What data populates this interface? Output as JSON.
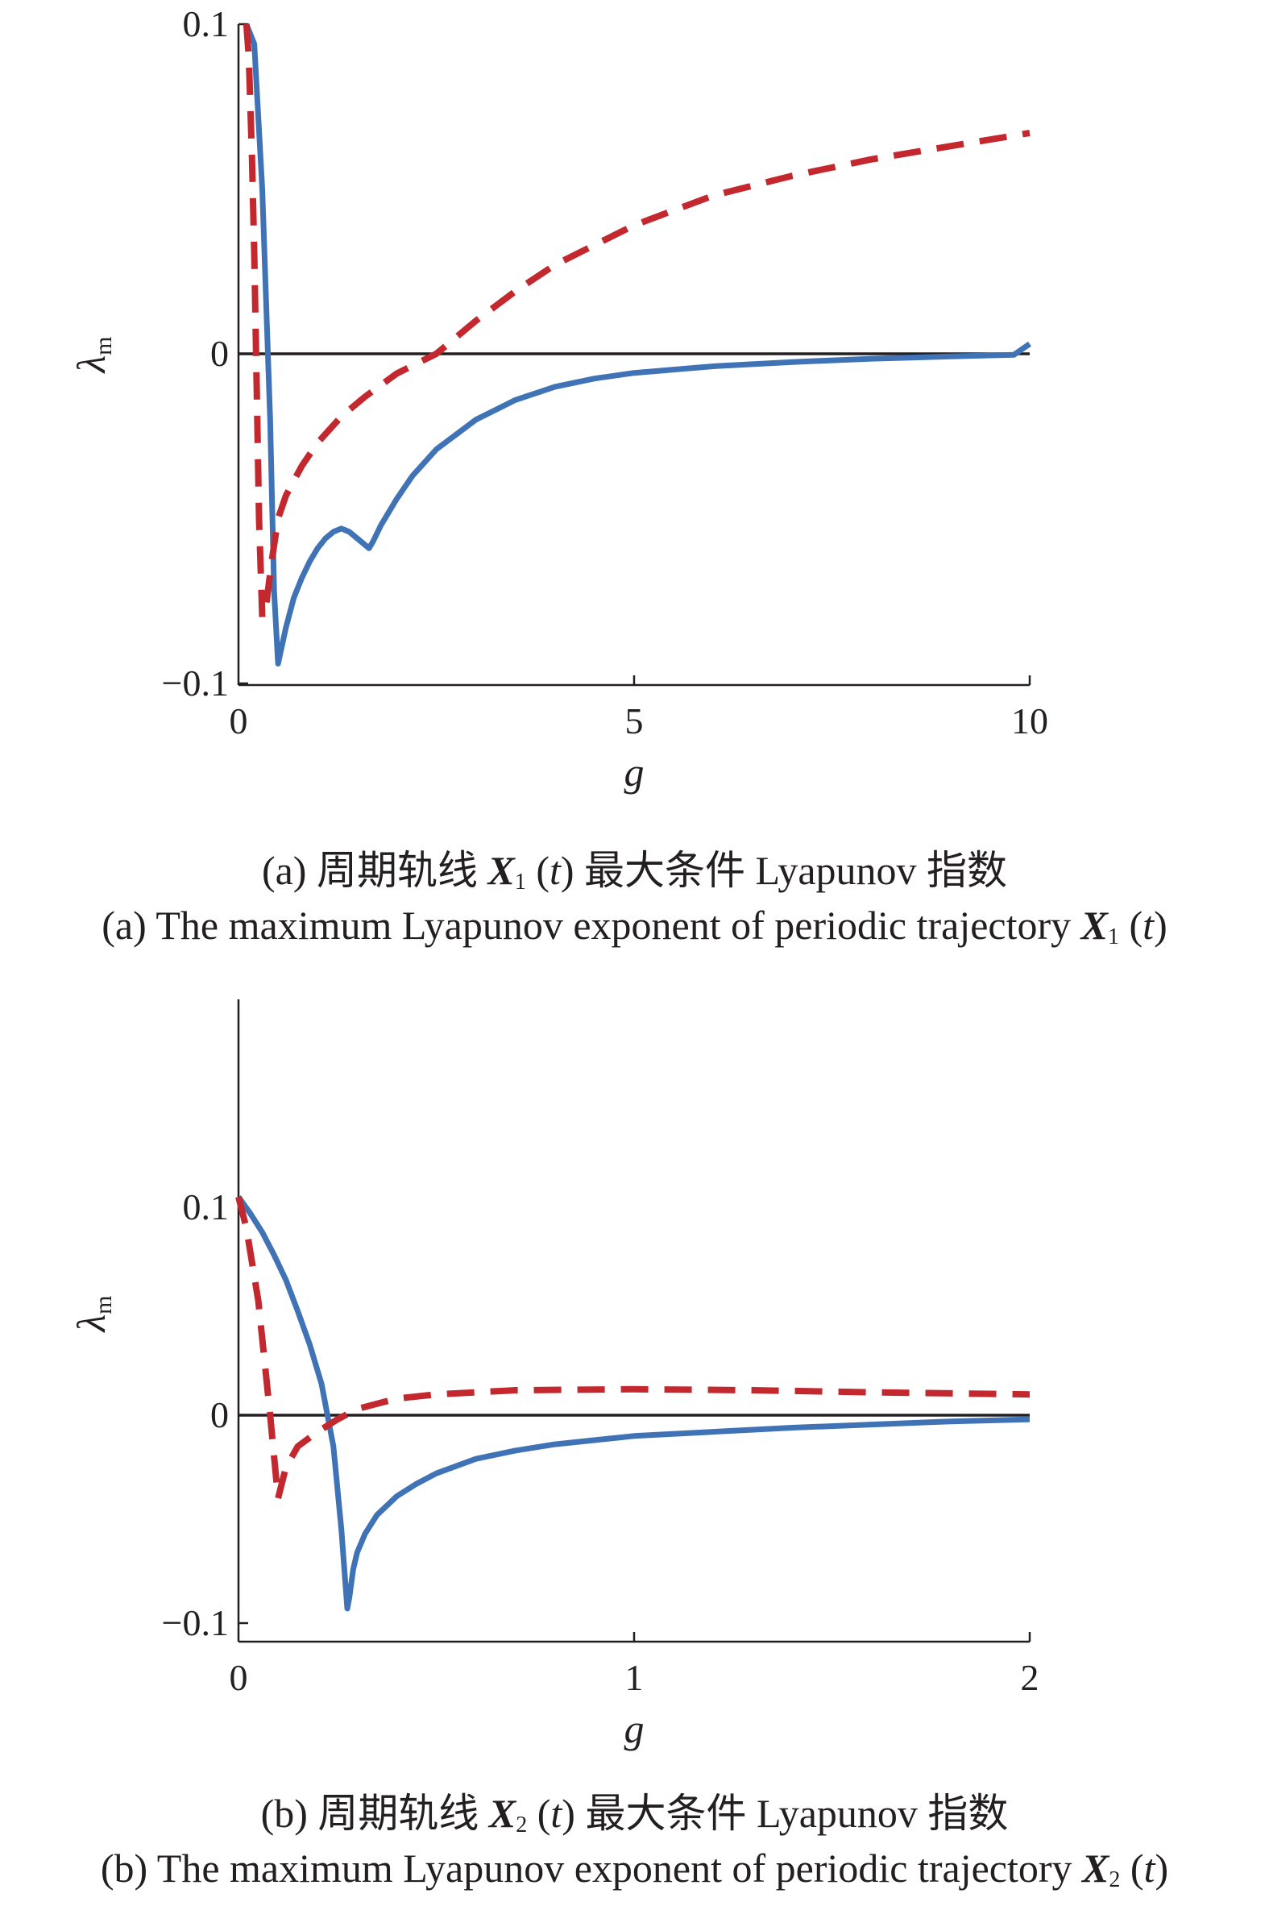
{
  "chart_data": [
    {
      "type": "line",
      "xlabel": "g",
      "ylabel": "λ",
      "ylabel_subscript": "m",
      "xlim": [
        0,
        10
      ],
      "ylim": [
        -0.1,
        0.1
      ],
      "xticks": [
        "0",
        "5",
        "10"
      ],
      "yticks": [
        "0.1",
        "0",
        "−0.1"
      ],
      "xtick_values": [
        0,
        5,
        10
      ],
      "ytick_values": [
        0.1,
        0,
        -0.1
      ],
      "reference_line_y": 0,
      "colors": {
        "solid": "#3f73b5",
        "dashed": "#c3282e",
        "zero": "#231f20",
        "axis": "#231f20"
      },
      "series": [
        {
          "style": "solid",
          "x": [
            0.1,
            0.2,
            0.3,
            0.4,
            0.45,
            0.5,
            0.6,
            0.7,
            0.8,
            0.9,
            1.0,
            1.1,
            1.2,
            1.3,
            1.4,
            1.5,
            1.6,
            1.65,
            1.7,
            1.8,
            2.0,
            2.2,
            2.5,
            3.0,
            3.5,
            4.0,
            4.5,
            5.0,
            6.0,
            7.0,
            8.0,
            9.0,
            9.8,
            10.0
          ],
          "y": [
            0.1,
            0.094,
            0.05,
            -0.02,
            -0.072,
            -0.094,
            -0.083,
            -0.074,
            -0.068,
            -0.063,
            -0.059,
            -0.056,
            -0.054,
            -0.053,
            -0.054,
            -0.056,
            -0.058,
            -0.059,
            -0.057,
            -0.052,
            -0.044,
            -0.037,
            -0.029,
            -0.02,
            -0.014,
            -0.01,
            -0.0075,
            -0.0058,
            -0.0038,
            -0.0025,
            -0.0015,
            -0.0008,
            -0.0003,
            0.003
          ]
        },
        {
          "style": "dashed",
          "x": [
            0.1,
            0.13,
            0.17,
            0.2,
            0.23,
            0.26,
            0.3,
            0.35,
            0.42,
            0.5,
            0.6,
            0.8,
            1.0,
            1.3,
            1.6,
            2.0,
            2.5,
            3.0,
            3.5,
            4.0,
            5.0,
            6.0,
            7.0,
            8.0,
            9.0,
            10.0
          ],
          "y": [
            0.1,
            0.09,
            0.06,
            0.03,
            -0.01,
            -0.05,
            -0.08,
            -0.076,
            -0.063,
            -0.05,
            -0.043,
            -0.034,
            -0.027,
            -0.019,
            -0.013,
            -0.006,
            0.0,
            0.01,
            0.019,
            0.027,
            0.039,
            0.048,
            0.054,
            0.059,
            0.063,
            0.067
          ]
        }
      ]
    },
    {
      "type": "line",
      "xlabel": "g",
      "ylabel": "λ",
      "ylabel_subscript": "m",
      "xlim": [
        0,
        2
      ],
      "ylim": [
        -0.1,
        0.1
      ],
      "xticks": [
        "0",
        "1",
        "2"
      ],
      "yticks": [
        "0.1",
        "0",
        "−0.1"
      ],
      "xtick_values": [
        0,
        1,
        2
      ],
      "ytick_values": [
        0.1,
        0,
        -0.1
      ],
      "reference_line_y": 0,
      "colors": {
        "solid": "#3f73b5",
        "dashed": "#c3282e",
        "zero": "#231f20",
        "axis": "#231f20"
      },
      "series": [
        {
          "style": "solid",
          "x": [
            0.0,
            0.03,
            0.06,
            0.09,
            0.12,
            0.15,
            0.18,
            0.21,
            0.24,
            0.26,
            0.275,
            0.28,
            0.29,
            0.3,
            0.32,
            0.35,
            0.4,
            0.45,
            0.5,
            0.6,
            0.7,
            0.8,
            1.0,
            1.2,
            1.4,
            1.6,
            1.8,
            2.0
          ],
          "y": [
            0.105,
            0.097,
            0.088,
            0.077,
            0.065,
            0.05,
            0.034,
            0.015,
            -0.015,
            -0.055,
            -0.093,
            -0.088,
            -0.074,
            -0.066,
            -0.057,
            -0.048,
            -0.039,
            -0.033,
            -0.028,
            -0.021,
            -0.017,
            -0.014,
            -0.01,
            -0.008,
            -0.006,
            -0.0045,
            -0.003,
            -0.002
          ]
        },
        {
          "style": "dashed",
          "x": [
            0.0,
            0.02,
            0.05,
            0.08,
            0.1,
            0.12,
            0.15,
            0.2,
            0.25,
            0.3,
            0.4,
            0.5,
            0.7,
            1.0,
            1.3,
            1.6,
            2.0
          ],
          "y": [
            0.105,
            0.09,
            0.055,
            0.0,
            -0.04,
            -0.025,
            -0.015,
            -0.008,
            -0.002,
            0.003,
            0.008,
            0.01,
            0.012,
            0.0125,
            0.012,
            0.011,
            0.01
          ]
        }
      ]
    }
  ],
  "captions": {
    "a": {
      "cn_pre": "(a) 周期轨线 ",
      "var": "X",
      "sub": "1",
      "arg_open": " (",
      "arg": "t",
      "arg_close": ")",
      "cn_post": " 最大条件 Lyapunov 指数",
      "en_pre": "(a) The maximum Lyapunov exponent of periodic trajectory "
    },
    "b": {
      "cn_pre": "(b) 周期轨线 ",
      "var": "X",
      "sub": "2",
      "arg_open": " (",
      "arg": "t",
      "arg_close": ")",
      "cn_post": " 最大条件 Lyapunov 指数",
      "en_pre": "(b) The maximum Lyapunov exponent of periodic trajectory "
    }
  }
}
